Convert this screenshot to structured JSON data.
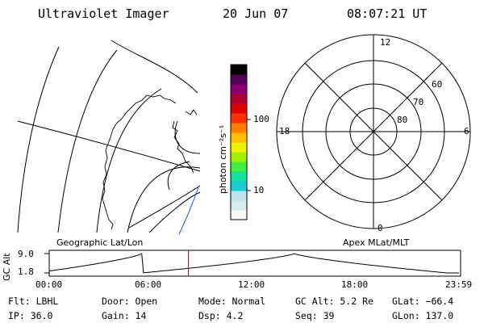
{
  "header": {
    "instrument": "Ultraviolet Imager",
    "date": "20 Jun 07",
    "time": "08:07:21 UT"
  },
  "colorbar": {
    "unit_label": "photon cm⁻²s⁻¹",
    "ticks": [
      "100",
      "10"
    ],
    "colors": [
      "#f6f6f6",
      "#d8ecee",
      "#b8e4ea",
      "#20c8d0",
      "#10e0a0",
      "#40f040",
      "#a0f000",
      "#f0f000",
      "#ffc000",
      "#ff8000",
      "#ff3000",
      "#e00000",
      "#b00030",
      "#8a0070",
      "#52005a",
      "#000000"
    ]
  },
  "polar": {
    "mlt_labels": {
      "top": "12",
      "left": "18",
      "right": "6",
      "bottom": "0"
    },
    "mlat_labels": [
      "60",
      "70",
      "80"
    ]
  },
  "timeline": {
    "ylabel": "GC Alt",
    "ymax": "9.0",
    "ymin": "1.8",
    "left_title": "Geographic Lat/Lon",
    "right_title": "Apex MLat/MLT",
    "xticks": [
      "00:00",
      "06:00",
      "12:00",
      "18:00",
      "23:59"
    ],
    "current_hour": 8.12,
    "alt_min": 1.8,
    "alt_max": 9.0,
    "orbit": {
      "min1_hour": 5.4,
      "max_hour": 14.3,
      "min2_hour": 23.2
    }
  },
  "info": {
    "filter": "Flt: LBHL",
    "door": "Door: Open",
    "mode": "Mode: Normal",
    "gc_alt": "GC Alt: 5.2 Re",
    "glat": "GLat: −66.4",
    "ip": "IP: 36.0",
    "gain": "Gain: 14",
    "dsp": "Dsp:    4.2",
    "seq": "Seq: 39",
    "glon": "GLon: 137.0"
  }
}
